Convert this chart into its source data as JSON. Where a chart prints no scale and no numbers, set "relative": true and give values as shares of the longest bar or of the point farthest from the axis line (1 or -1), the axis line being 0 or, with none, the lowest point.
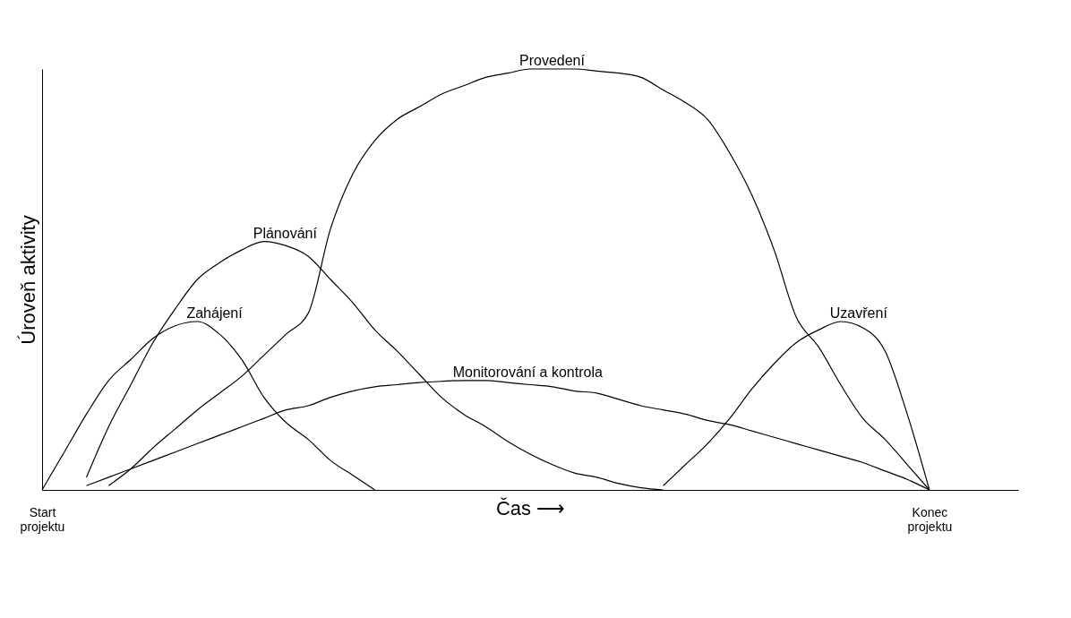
{
  "chart_data": {
    "type": "line",
    "relative": true,
    "xlabel": "Čas ⟶",
    "ylabel": "Úroveň aktivity",
    "categories": [
      "Start projektu",
      null,
      null,
      null,
      null,
      null,
      null,
      null,
      null,
      null,
      null,
      null,
      null,
      null,
      null,
      null,
      null,
      null,
      null,
      null,
      null,
      null,
      null,
      null,
      null,
      null,
      null,
      null,
      null,
      null,
      null,
      null,
      null,
      null,
      null,
      null,
      null,
      null,
      null,
      null,
      "Konec projektu",
      null,
      null,
      null,
      null
    ],
    "legend": false,
    "grid": false,
    "marker": "none",
    "line_style": "solid",
    "series": [
      {
        "name": "Zahájení",
        "color": "#000000",
        "values": [
          0,
          0.09,
          0.18,
          0.26,
          0.31,
          0.36,
          0.39,
          0.4,
          0.37,
          0.31,
          0.22,
          0.16,
          0.12,
          0.07,
          0.035,
          0,
          null,
          null,
          null,
          null,
          null,
          null,
          null,
          null,
          null,
          null,
          null,
          null,
          null,
          null,
          null,
          null,
          null,
          null,
          null,
          null,
          null,
          null,
          null,
          null,
          null,
          null,
          null,
          null,
          null
        ]
      },
      {
        "name": "Plánování",
        "color": "#000000",
        "values": [
          null,
          null,
          0.03,
          0.15,
          0.25,
          0.35,
          0.43,
          0.5,
          0.54,
          0.57,
          0.59,
          0.58,
          0.555,
          0.5,
          0.445,
          0.38,
          0.33,
          0.275,
          0.22,
          0.18,
          0.15,
          0.115,
          0.085,
          0.06,
          0.04,
          0.03,
          0.015,
          0.005,
          0,
          null,
          null,
          null,
          null,
          null,
          null,
          null,
          null,
          null,
          null,
          null,
          null,
          null,
          null,
          null,
          null
        ]
      },
      {
        "name": "Provedení",
        "color": "#000000",
        "values": [
          null,
          null,
          null,
          0.01,
          0.05,
          0.1,
          0.145,
          0.19,
          0.23,
          0.27,
          0.32,
          0.37,
          0.42,
          0.62,
          0.75,
          0.83,
          0.88,
          0.91,
          0.94,
          0.96,
          0.98,
          0.99,
          1.0,
          1.0,
          1.0,
          0.995,
          0.99,
          0.98,
          0.95,
          0.92,
          0.88,
          0.8,
          0.7,
          0.57,
          0.41,
          0.34,
          0.25,
          0.17,
          0.12,
          0.06,
          0,
          null,
          null,
          null,
          null
        ]
      },
      {
        "name": "Monitorování a kontrola",
        "color": "#000000",
        "values": [
          null,
          null,
          0.01,
          0.03,
          0.05,
          0.07,
          0.09,
          0.11,
          0.13,
          0.15,
          0.17,
          0.19,
          0.2,
          0.22,
          0.235,
          0.245,
          0.25,
          0.255,
          0.258,
          0.26,
          0.26,
          0.255,
          0.25,
          0.245,
          0.235,
          0.23,
          0.215,
          0.2,
          0.19,
          0.18,
          0.165,
          0.155,
          0.14,
          0.125,
          0.11,
          0.095,
          0.08,
          0.065,
          0.045,
          0.025,
          0,
          null,
          null,
          null,
          null
        ]
      },
      {
        "name": "Uzavření",
        "color": "#000000",
        "values": [
          null,
          null,
          null,
          null,
          null,
          null,
          null,
          null,
          null,
          null,
          null,
          null,
          null,
          null,
          null,
          null,
          null,
          null,
          null,
          null,
          null,
          null,
          null,
          null,
          null,
          null,
          null,
          null,
          0.01,
          0.06,
          0.11,
          0.17,
          0.24,
          0.3,
          0.35,
          0.38,
          0.4,
          0.385,
          0.33,
          0.18,
          0,
          null,
          null,
          null,
          null
        ]
      }
    ]
  }
}
